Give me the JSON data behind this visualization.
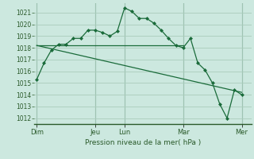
{
  "bg_color": "#cce8df",
  "grid_color": "#aaccbb",
  "line_color": "#1a6b3a",
  "marker_color": "#1a6b3a",
  "title": "Pression niveau de la mer( hPa )",
  "ylim": [
    1011.5,
    1021.8
  ],
  "yticks": [
    1012,
    1013,
    1014,
    1015,
    1016,
    1017,
    1018,
    1019,
    1020,
    1021
  ],
  "day_labels": [
    "Dim",
    "Jeu",
    "Lun",
    "Mar",
    "Mer"
  ],
  "day_positions": [
    0,
    24,
    36,
    60,
    84
  ],
  "xlim": [
    -1,
    88
  ],
  "series1_x": [
    0,
    3,
    6,
    9,
    12,
    15,
    18,
    21,
    24,
    27,
    30,
    33,
    36,
    39,
    42,
    45,
    48,
    51,
    54,
    57,
    60,
    63,
    66,
    69,
    72,
    75,
    78,
    81,
    84
  ],
  "series1_y": [
    1015.3,
    1016.7,
    1017.8,
    1018.3,
    1018.3,
    1018.8,
    1018.8,
    1019.5,
    1019.5,
    1019.3,
    1019.0,
    1019.4,
    1021.4,
    1021.1,
    1020.5,
    1020.5,
    1020.1,
    1019.5,
    1018.8,
    1018.2,
    1018.0,
    1018.8,
    1016.7,
    1016.1,
    1015.0,
    1013.2,
    1012.0,
    1014.4,
    1014.0
  ],
  "series2_x": [
    0,
    60
  ],
  "series2_y": [
    1018.2,
    1018.2
  ],
  "series3_x": [
    0,
    84
  ],
  "series3_y": [
    1018.2,
    1014.2
  ]
}
